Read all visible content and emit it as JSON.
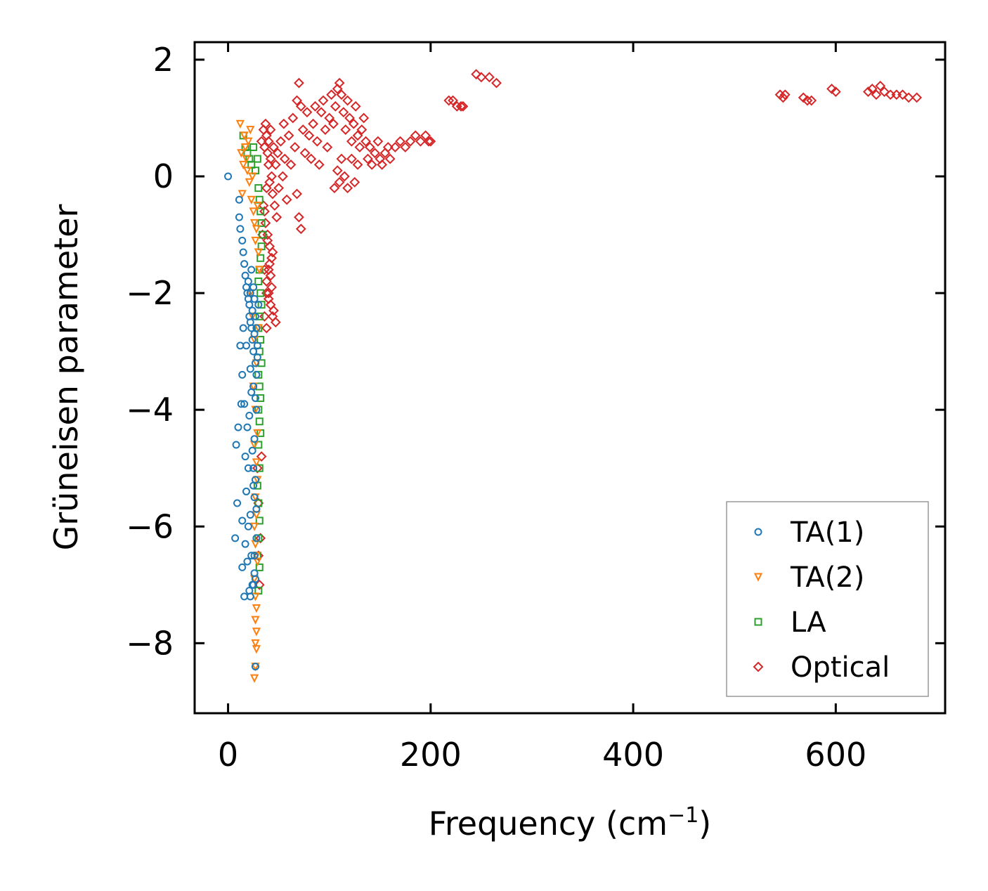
{
  "chart_data": {
    "type": "scatter",
    "title": "",
    "xlabel": "Frequency (cm",
    "xlabel_sup": "−1",
    "xlabel_end": ")",
    "ylabel": "Grüneisen parameter",
    "xlim": [
      -33,
      708
    ],
    "ylim": [
      -9.2,
      2.3
    ],
    "xticks": [
      0,
      200,
      400,
      600
    ],
    "xtick_labels": [
      "0",
      "200",
      "400",
      "600"
    ],
    "yticks": [
      2,
      0,
      -2,
      -4,
      -6,
      -8
    ],
    "ytick_labels": [
      "2",
      "0",
      "−2",
      "−4",
      "−6",
      "−8"
    ],
    "legend_position": "lower-right",
    "series": [
      {
        "name": "TA(1)",
        "marker": "circle",
        "color": "#1f77b4",
        "x": [
          0,
          11,
          11,
          12,
          14,
          15,
          16,
          17,
          18,
          19,
          20,
          20,
          21,
          21,
          22,
          22,
          23,
          23,
          24,
          24,
          25,
          25,
          26,
          26,
          27,
          27,
          28,
          28,
          29,
          29,
          30,
          15,
          18,
          22,
          25,
          27,
          12,
          14,
          16,
          19,
          21,
          23,
          26,
          28,
          8,
          10,
          13,
          17,
          20,
          24,
          27,
          7,
          9,
          14,
          18,
          22,
          25,
          28,
          17,
          20,
          23,
          26,
          28,
          14,
          19,
          24,
          27,
          16,
          21,
          25,
          22,
          26,
          27,
          25,
          26
        ],
        "y": [
          0,
          -0.4,
          -0.7,
          -0.9,
          -1.1,
          -1.3,
          -1.5,
          -1.7,
          -1.9,
          -2.0,
          -2.1,
          -1.8,
          -2.2,
          -2.4,
          -2.5,
          -2.0,
          -2.6,
          -1.6,
          -2.8,
          -2.3,
          -3.0,
          -1.9,
          -2.7,
          -2.1,
          -3.2,
          -2.4,
          -3.4,
          -2.6,
          -2.9,
          -3.1,
          -2.2,
          -2.6,
          -2.9,
          -3.3,
          -3.6,
          -3.8,
          -2.9,
          -3.4,
          -3.9,
          -4.3,
          -4.1,
          -3.7,
          -4.5,
          -4.0,
          -4.6,
          -4.3,
          -3.9,
          -4.8,
          -5.0,
          -4.7,
          -5.2,
          -6.2,
          -5.6,
          -5.9,
          -5.4,
          -5.8,
          -5.3,
          -5.7,
          -6.3,
          -6.0,
          -6.5,
          -6.8,
          -6.2,
          -6.7,
          -6.6,
          -7.0,
          -6.9,
          -7.2,
          -7.1,
          -7.0,
          -7.2,
          -6.5,
          -8.4,
          -5.0,
          -5.5
        ],
        "points": 75
      },
      {
        "name": "TA(2)",
        "marker": "triangle-down",
        "color": "#ff7f0e",
        "x": [
          12,
          13,
          14,
          15,
          16,
          17,
          18,
          19,
          20,
          21,
          22,
          23,
          24,
          25,
          26,
          27,
          28,
          29,
          30,
          31,
          22,
          24,
          26,
          28,
          30,
          25,
          27,
          29,
          26,
          28,
          29,
          27,
          28,
          26,
          27,
          28,
          29,
          26,
          27,
          28,
          27,
          28,
          27,
          28,
          27,
          26
        ],
        "y": [
          0.9,
          0.4,
          -0.3,
          0.2,
          0.7,
          0.5,
          0.3,
          0.1,
          0.6,
          -0.1,
          0.8,
          -0.4,
          0.0,
          -0.6,
          -0.8,
          -1.1,
          -0.9,
          -0.5,
          -1.3,
          -1.6,
          -2.0,
          -2.4,
          -2.8,
          -3.2,
          -2.6,
          -3.6,
          -4.0,
          -4.4,
          -4.6,
          -4.9,
          -5.2,
          -5.5,
          -5.8,
          -6.0,
          -6.3,
          -6.5,
          -6.6,
          -6.9,
          -7.2,
          -7.4,
          -7.6,
          -7.8,
          -8.0,
          -8.1,
          -8.4,
          -8.6
        ],
        "points": 46
      },
      {
        "name": "LA",
        "marker": "square",
        "color": "#2ca02c",
        "x": [
          15,
          17,
          19,
          21,
          23,
          25,
          27,
          29,
          30,
          31,
          32,
          33,
          34,
          33,
          32,
          31,
          30,
          32,
          33,
          31,
          30,
          32,
          31,
          33,
          30,
          31,
          32,
          30,
          31,
          32,
          30,
          31,
          29,
          30,
          31,
          30,
          29,
          31,
          30
        ],
        "y": [
          0.7,
          0.5,
          0.4,
          0.3,
          0.2,
          0.5,
          0.1,
          0.3,
          -0.2,
          -0.4,
          -0.6,
          -0.8,
          -1.0,
          -1.2,
          -1.4,
          -1.6,
          -1.8,
          -2.0,
          -2.2,
          -2.4,
          -2.6,
          -2.8,
          -3.0,
          -3.2,
          -3.4,
          -3.6,
          -3.8,
          -4.0,
          -4.2,
          -4.4,
          -4.6,
          -5.0,
          -5.3,
          -5.6,
          -5.9,
          -6.2,
          -6.5,
          -6.7,
          -7.1
        ],
        "points": 39
      },
      {
        "name": "Optical",
        "marker": "diamond",
        "color": "#d62728",
        "x": [
          33,
          35,
          36,
          37,
          38,
          39,
          40,
          40,
          41,
          42,
          42,
          43,
          44,
          45,
          46,
          47,
          48,
          49,
          50,
          52,
          54,
          55,
          56,
          58,
          60,
          62,
          64,
          66,
          68,
          70,
          72,
          74,
          76,
          78,
          80,
          82,
          84,
          86,
          88,
          90,
          92,
          94,
          96,
          98,
          100,
          102,
          104,
          106,
          108,
          110,
          112,
          114,
          116,
          118,
          120,
          122,
          124,
          126,
          128,
          130,
          132,
          134,
          136,
          138,
          140,
          142,
          145,
          148,
          150,
          152,
          155,
          158,
          160,
          165,
          170,
          175,
          180,
          185,
          190,
          195,
          198,
          200,
          218,
          222,
          226,
          230,
          232,
          245,
          250,
          258,
          265,
          545,
          548,
          550,
          568,
          572,
          576,
          596,
          600,
          632,
          636,
          640,
          644,
          648,
          654,
          660,
          666,
          672,
          680,
          35,
          37,
          39,
          41,
          43,
          36,
          38,
          40,
          42,
          44,
          39,
          41,
          43,
          45,
          47,
          70,
          72,
          68,
          105,
          108,
          110,
          112,
          115,
          118,
          125,
          128,
          122,
          38,
          40,
          42,
          44,
          36,
          38,
          40,
          34,
          36,
          38,
          30,
          32,
          30,
          31,
          29,
          33
        ],
        "y": [
          0.6,
          0.8,
          0.5,
          0.9,
          0.7,
          0.4,
          0.2,
          0.6,
          -0.1,
          0.3,
          0.8,
          0.0,
          -0.3,
          0.5,
          -0.5,
          0.2,
          -0.7,
          0.4,
          -0.2,
          0.6,
          0.0,
          0.9,
          0.3,
          -0.4,
          0.7,
          0.2,
          1.0,
          0.5,
          1.3,
          1.6,
          1.2,
          0.8,
          0.4,
          1.1,
          0.7,
          0.3,
          0.9,
          1.2,
          0.6,
          0.2,
          1.1,
          1.3,
          0.8,
          0.5,
          1.0,
          1.4,
          0.9,
          1.2,
          1.5,
          1.6,
          1.4,
          1.1,
          0.8,
          1.3,
          1.0,
          0.6,
          0.9,
          1.2,
          0.7,
          0.5,
          0.8,
          1.0,
          0.6,
          0.3,
          0.5,
          0.2,
          0.4,
          0.6,
          0.3,
          0.2,
          0.4,
          0.5,
          0.3,
          0.5,
          0.6,
          0.5,
          0.6,
          0.7,
          0.6,
          0.7,
          0.6,
          0.6,
          1.3,
          1.3,
          1.2,
          1.2,
          1.2,
          1.75,
          1.7,
          1.7,
          1.6,
          1.4,
          1.35,
          1.4,
          1.35,
          1.3,
          1.3,
          1.5,
          1.45,
          1.45,
          1.5,
          1.4,
          1.55,
          1.45,
          1.4,
          1.4,
          1.4,
          1.35,
          1.35,
          -0.5,
          -0.8,
          -1.0,
          -1.2,
          -1.4,
          -1.6,
          -1.8,
          -2.0,
          -2.2,
          -2.4,
          -1.1,
          -1.5,
          -1.9,
          -2.3,
          -2.5,
          -0.7,
          -0.9,
          -0.3,
          -0.2,
          0.1,
          -0.1,
          0.3,
          0.0,
          -0.2,
          -0.1,
          0.2,
          0.3,
          -2.6,
          -2.1,
          -1.7,
          -1.3,
          -2.4,
          -2.0,
          -1.6,
          -1.0,
          -0.6,
          -0.2,
          -5.6,
          -6.2,
          -6.5,
          -7.0,
          -5.0,
          -4.8
        ],
        "points": 152
      }
    ]
  }
}
